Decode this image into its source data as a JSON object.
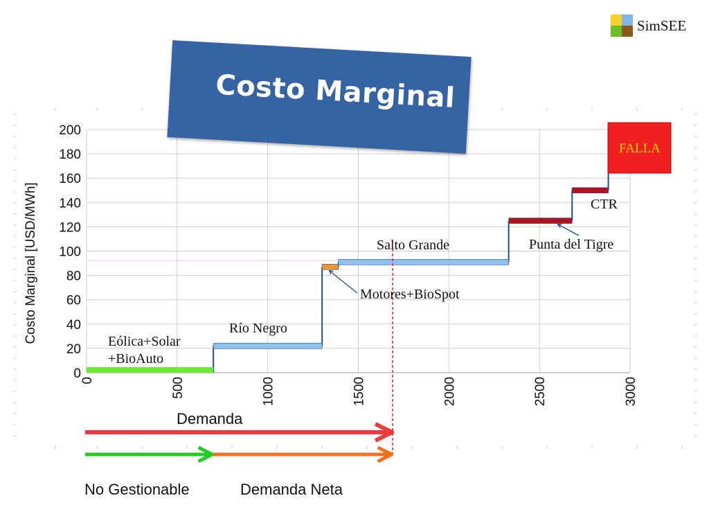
{
  "logo": {
    "name": "SimSEE",
    "colors": [
      "#f7d02c",
      "#82b6e6",
      "#6bbf2a",
      "#8a5a1c"
    ]
  },
  "title": "Costo Marginal",
  "chart_data": {
    "type": "line",
    "subtype": "step-supply-curve",
    "ylabel": "Costo Marginal [USD/MWh]",
    "xlabel": "",
    "xlim": [
      0,
      3000
    ],
    "ylim": [
      0,
      200
    ],
    "x_ticks": [
      0,
      500,
      1000,
      1500,
      2000,
      2500,
      3000
    ],
    "y_ticks": [
      0,
      20,
      40,
      60,
      80,
      100,
      120,
      140,
      160,
      180,
      200
    ],
    "grid": true,
    "segments": [
      {
        "label": "Eólica+Solar\n+BioAuto",
        "x_start": 0,
        "x_end": 700,
        "y": 0,
        "color": "#6fe832"
      },
      {
        "label": "Río Negro",
        "x_start": 700,
        "x_end": 1300,
        "y": 22,
        "color": "#8ec1ee"
      },
      {
        "label": "Motores+BioSpot",
        "x_start": 1300,
        "x_end": 1390,
        "y": 87,
        "color": "#f0962e"
      },
      {
        "label": "Salto Grande",
        "x_start": 1390,
        "x_end": 2330,
        "y": 91,
        "color": "#8ec1ee"
      },
      {
        "label": "Punta del Tigre",
        "x_start": 2330,
        "x_end": 2680,
        "y": 125,
        "color": "#b3121c"
      },
      {
        "label": "CTR",
        "x_start": 2680,
        "x_end": 2880,
        "y": 150,
        "color": "#b3121c"
      }
    ],
    "falla": {
      "label": "FALLA",
      "x_start": 2880,
      "y_start": 165,
      "color": "#f02020",
      "text_color": "#f5d000"
    },
    "demand_x": 1690,
    "demand_value_y": 91,
    "step_line_color": "#1f4f8a",
    "arrows": {
      "demanda": {
        "label": "Demanda",
        "x_start": 0,
        "x_end": 1690,
        "color": "#ee3a3a"
      },
      "no_gestionable": {
        "label": "No Gestionable",
        "x_start": 0,
        "x_end": 700,
        "color": "#22cc22"
      },
      "demanda_neta": {
        "label": "Demanda Neta",
        "x_start": 700,
        "x_end": 1690,
        "color": "#f07020"
      }
    }
  }
}
